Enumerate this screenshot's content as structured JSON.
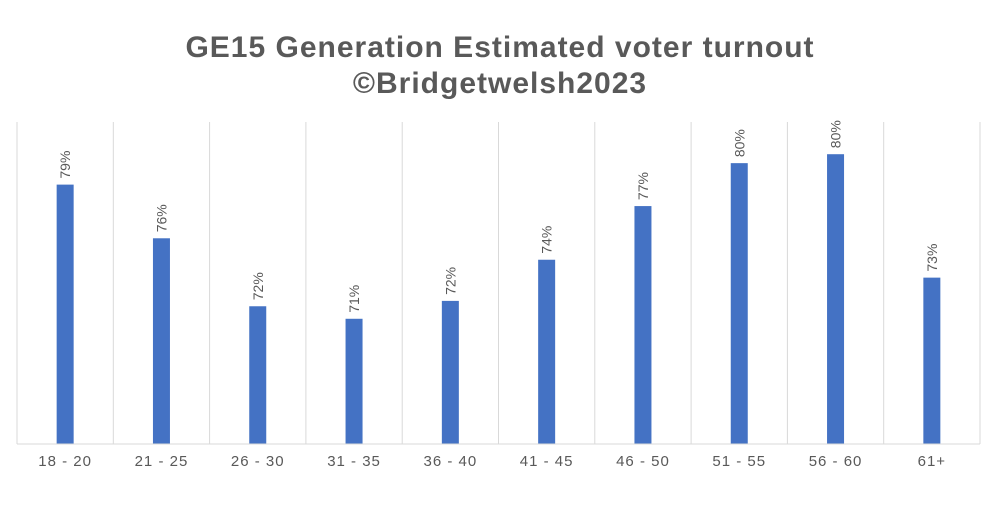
{
  "chart_data": {
    "type": "bar",
    "title": "GE15 Generation Estimated voter turnout",
    "subtitle": "©Bridgetwelsh2023",
    "categories": [
      "18 - 20",
      "21 - 25",
      "26 - 30",
      "31 - 35",
      "36 - 40",
      "41 - 45",
      "46 - 50",
      "51 - 55",
      "56 - 60",
      "61+"
    ],
    "values": [
      78.5,
      75.5,
      71.7,
      71.0,
      72.0,
      74.3,
      77.3,
      79.7,
      80.2,
      73.3
    ],
    "data_labels": [
      "79%",
      "76%",
      "72%",
      "71%",
      "72%",
      "74%",
      "77%",
      "80%",
      "80%",
      "73%"
    ],
    "xlabel": "",
    "ylabel": "",
    "ylim": [
      64,
      82
    ],
    "bar_color": "#4472c4",
    "grid": "vertical category separators",
    "legend": "none"
  }
}
